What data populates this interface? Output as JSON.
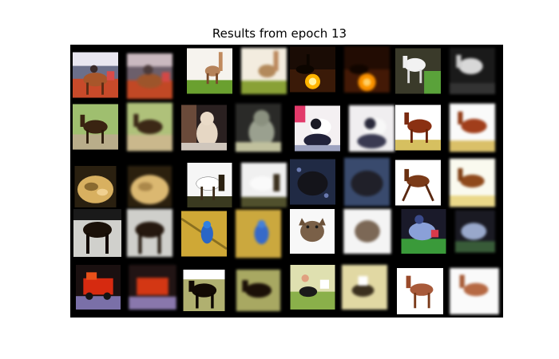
{
  "figure": {
    "title": "Results from epoch 13"
  },
  "grid": {
    "rows": 5,
    "pairs_per_row": 4,
    "layout": "each pair shows an original image followed by its reconstruction",
    "cells": [
      [
        "horse-rider-red",
        "horse-standing-field",
        "horse-rider-sunset",
        "horse-white-trees"
      ],
      [
        "horse-dark-green",
        "cat-sitting",
        "dog-black-white",
        "horse-brown-white"
      ],
      [
        "frog",
        "horse-white-dark",
        "frog-dark-blue",
        "horse-running"
      ],
      [
        "horse-dark-road",
        "bird-blue",
        "cat-white",
        "horse-rider-blue"
      ],
      [
        "truck-red",
        "horse-black-field",
        "horse-rider-grass",
        "horse-brown-white-bg"
      ]
    ]
  },
  "colors": {
    "background": "#ffffff",
    "grid_background": "#000000",
    "title": "#000000"
  }
}
